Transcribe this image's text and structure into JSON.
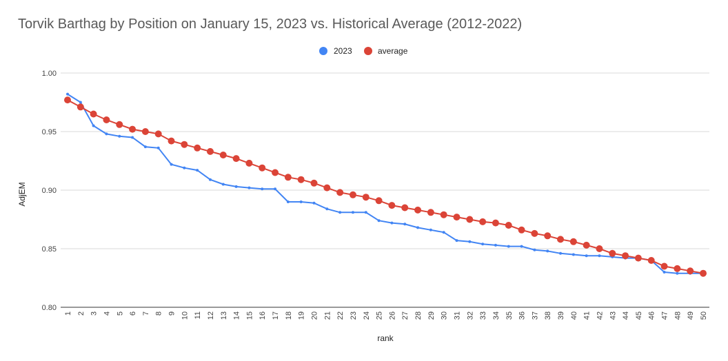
{
  "chart_data": {
    "type": "line",
    "title": "Torvik Barthag by Position on January 15, 2023 vs. Historical Average (2012-2022)",
    "xlabel": "rank",
    "ylabel": "AdjEM",
    "ylim": [
      0.8,
      1.0
    ],
    "yticks": [
      "0.80",
      "0.85",
      "0.90",
      "0.95",
      "1.00"
    ],
    "x": [
      1,
      2,
      3,
      4,
      5,
      6,
      7,
      8,
      9,
      10,
      11,
      12,
      13,
      14,
      15,
      16,
      17,
      18,
      19,
      20,
      21,
      22,
      23,
      24,
      25,
      26,
      27,
      28,
      29,
      30,
      31,
      32,
      33,
      34,
      35,
      36,
      37,
      38,
      39,
      40,
      41,
      42,
      43,
      44,
      45,
      46,
      47,
      48,
      49,
      50
    ],
    "grid": true,
    "legend_position": "top",
    "series": [
      {
        "name": "2023",
        "color": "#4285f4",
        "values": [
          0.982,
          0.975,
          0.955,
          0.948,
          0.946,
          0.945,
          0.937,
          0.936,
          0.922,
          0.919,
          0.917,
          0.909,
          0.905,
          0.903,
          0.902,
          0.901,
          0.901,
          0.89,
          0.89,
          0.889,
          0.884,
          0.881,
          0.881,
          0.881,
          0.874,
          0.872,
          0.871,
          0.868,
          0.866,
          0.864,
          0.857,
          0.856,
          0.854,
          0.853,
          0.852,
          0.852,
          0.849,
          0.848,
          0.846,
          0.845,
          0.844,
          0.844,
          0.843,
          0.842,
          0.842,
          0.84,
          0.83,
          0.829,
          0.829,
          0.829
        ]
      },
      {
        "name": "average",
        "color": "#db4437",
        "values": [
          0.977,
          0.971,
          0.965,
          0.96,
          0.956,
          0.952,
          0.95,
          0.948,
          0.942,
          0.939,
          0.936,
          0.933,
          0.93,
          0.927,
          0.923,
          0.919,
          0.915,
          0.911,
          0.909,
          0.906,
          0.902,
          0.898,
          0.896,
          0.894,
          0.891,
          0.887,
          0.885,
          0.883,
          0.881,
          0.879,
          0.877,
          0.875,
          0.873,
          0.872,
          0.87,
          0.866,
          0.863,
          0.861,
          0.858,
          0.856,
          0.853,
          0.85,
          0.846,
          0.844,
          0.842,
          0.84,
          0.835,
          0.833,
          0.831,
          0.829
        ]
      }
    ]
  }
}
